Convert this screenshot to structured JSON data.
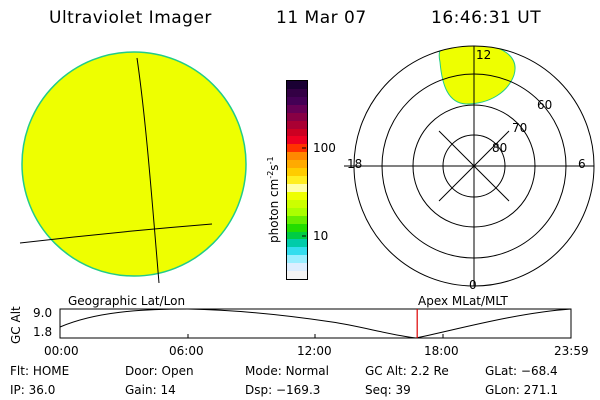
{
  "header": {
    "instrument": "Ultraviolet Imager",
    "date": "11 Mar 07",
    "time": "16:46:31 UT"
  },
  "colorbar": {
    "label": "photon cm",
    "exp1": "-2",
    "mid": "s",
    "exp2": "-1",
    "ticks": [
      "100",
      "10"
    ],
    "colors": [
      "#1a0033",
      "#330044",
      "#440055",
      "#660055",
      "#880044",
      "#aa0033",
      "#cc0022",
      "#ee0022",
      "#ff3300",
      "#ff8800",
      "#ffaa00",
      "#ffcc00",
      "#ffee22",
      "#ffffaa",
      "#eeff00",
      "#ccff00",
      "#aaff00",
      "#66ee00",
      "#22dd00",
      "#00cc44",
      "#00ccaa",
      "#33ddee",
      "#99eeff",
      "#ddeeff",
      "#f4f4f4"
    ]
  },
  "geo": {
    "fill": "#eeff00",
    "edge": "#22cc88"
  },
  "polar": {
    "labels": {
      "top": "12",
      "bottom": "0",
      "left": "18",
      "right": "6"
    },
    "lat_labels": [
      "60",
      "70",
      "80"
    ],
    "auroral_fill": "#eeff00"
  },
  "altitude_plot": {
    "ylabel": "GC Alt",
    "ymax": "9.0",
    "ymin": "1.8",
    "left_title": "Geographic Lat/Lon",
    "right_title": "Apex MLat/MLT",
    "time_ticks": [
      "00:00",
      "06:00",
      "12:00",
      "18:00",
      "23:59"
    ],
    "marker_color": "#dd0000",
    "current_time_fraction": 0.699
  },
  "info": {
    "flt_label": "Flt:",
    "flt_value": "HOME",
    "ip_label": "IP:",
    "ip_value": "36.0",
    "door_label": "Door:",
    "door_value": "Open",
    "gain_label": "Gain:",
    "gain_value": "14",
    "mode_label": "Mode:",
    "mode_value": "Normal",
    "dsp_label": "Dsp:",
    "dsp_value": "−169.3",
    "gcalt_label": "GC Alt:",
    "gcalt_value": "2.2 Re",
    "seq_label": "Seq:",
    "seq_value": "39",
    "glat_label": "GLat:",
    "glat_value": "−68.4",
    "glon_label": "GLon:",
    "glon_value": "271.1"
  }
}
